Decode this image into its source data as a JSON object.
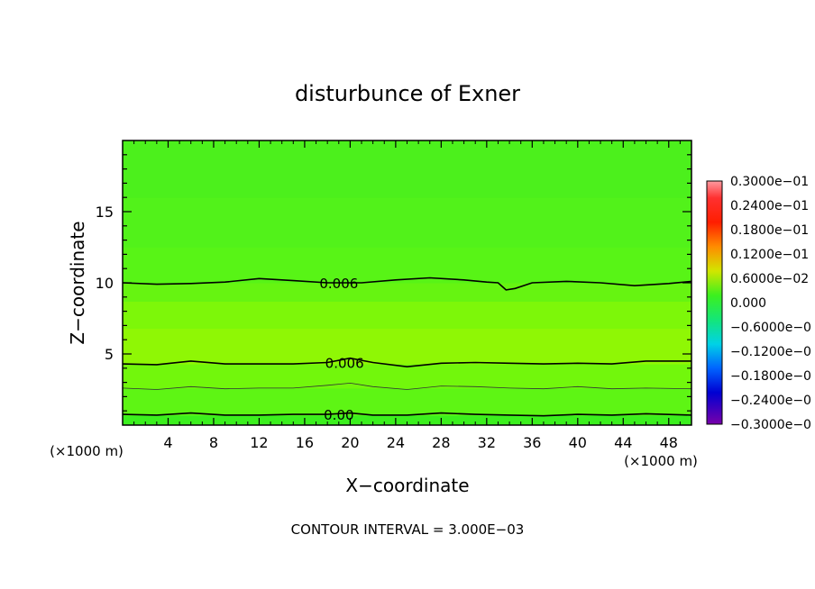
{
  "chart_data": {
    "type": "contour",
    "title": "disturbunce of Exner",
    "xlabel": "X−coordinate",
    "ylabel": "Z−coordinate",
    "x_unit_left": "(×1000 m)",
    "x_unit_right": "(×1000 m)",
    "footer": "CONTOUR INTERVAL = 3.000E−03",
    "xlim": [
      0,
      50
    ],
    "ylim": [
      0,
      20
    ],
    "x_ticks": [
      4,
      8,
      12,
      16,
      20,
      24,
      28,
      32,
      36,
      40,
      44,
      48
    ],
    "y_ticks": [
      5,
      10,
      15
    ],
    "colorbar": {
      "labels": [
        "0.3000e−01",
        "0.2400e−01",
        "0.1800e−01",
        "0.1200e−01",
        "0.6000e−02",
        "0.000",
        "−0.6000e−0",
        "−0.1200e−0",
        "−0.1800e−0",
        "−0.2400e−0",
        "−0.3000e−0"
      ],
      "max": 0.03,
      "min": -0.03
    },
    "bands": [
      {
        "z0": 0.0,
        "z1": 0.7,
        "color": "#3cf01e"
      },
      {
        "z0": 0.7,
        "z1": 2.6,
        "color": "#5ef514"
      },
      {
        "z0": 2.6,
        "z1": 4.3,
        "color": "#72f70c"
      },
      {
        "z0": 4.3,
        "z1": 6.8,
        "color": "#8ff705"
      },
      {
        "z0": 6.8,
        "z1": 8.7,
        "color": "#7df709"
      },
      {
        "z0": 8.7,
        "z1": 10.0,
        "color": "#66f411"
      },
      {
        "z0": 10.0,
        "z1": 12.5,
        "color": "#58f416"
      },
      {
        "z0": 12.5,
        "z1": 16.0,
        "color": "#52f21a"
      },
      {
        "z0": 16.0,
        "z1": 20.0,
        "color": "#4cf01c"
      }
    ],
    "contours": [
      {
        "label": "0.006",
        "label_x": 17.5,
        "style": "bold",
        "points": [
          [
            0,
            10.0
          ],
          [
            3,
            9.9
          ],
          [
            6,
            9.95
          ],
          [
            9,
            10.05
          ],
          [
            12,
            10.3
          ],
          [
            15,
            10.15
          ],
          [
            18,
            10.0
          ],
          [
            21,
            10.0
          ],
          [
            24,
            10.2
          ],
          [
            27,
            10.35
          ],
          [
            30,
            10.2
          ],
          [
            32,
            10.05
          ],
          [
            33,
            10.0
          ],
          [
            33.7,
            9.5
          ],
          [
            34.5,
            9.6
          ],
          [
            36,
            10.0
          ],
          [
            39,
            10.1
          ],
          [
            42,
            10.0
          ],
          [
            45,
            9.8
          ],
          [
            48,
            9.95
          ],
          [
            50,
            10.1
          ]
        ]
      },
      {
        "label": "0.006",
        "label_x": 18.0,
        "style": "bold",
        "points": [
          [
            0,
            4.3
          ],
          [
            3,
            4.25
          ],
          [
            6,
            4.5
          ],
          [
            9,
            4.3
          ],
          [
            12,
            4.3
          ],
          [
            15,
            4.3
          ],
          [
            18,
            4.4
          ],
          [
            20,
            4.7
          ],
          [
            22,
            4.4
          ],
          [
            25,
            4.1
          ],
          [
            28,
            4.35
          ],
          [
            31,
            4.4
          ],
          [
            34,
            4.35
          ],
          [
            37,
            4.3
          ],
          [
            40,
            4.35
          ],
          [
            43,
            4.3
          ],
          [
            46,
            4.5
          ],
          [
            50,
            4.5
          ]
        ]
      },
      {
        "label": "",
        "label_x": 0,
        "style": "thin",
        "points": [
          [
            0,
            2.6
          ],
          [
            3,
            2.5
          ],
          [
            6,
            2.7
          ],
          [
            9,
            2.55
          ],
          [
            12,
            2.6
          ],
          [
            15,
            2.6
          ],
          [
            18,
            2.8
          ],
          [
            20,
            2.95
          ],
          [
            22,
            2.7
          ],
          [
            25,
            2.5
          ],
          [
            28,
            2.75
          ],
          [
            31,
            2.7
          ],
          [
            34,
            2.6
          ],
          [
            37,
            2.55
          ],
          [
            40,
            2.7
          ],
          [
            43,
            2.55
          ],
          [
            46,
            2.6
          ],
          [
            50,
            2.55
          ]
        ]
      },
      {
        "label": "0.00",
        "label_x": 17.5,
        "style": "bold",
        "points": [
          [
            0,
            0.75
          ],
          [
            3,
            0.7
          ],
          [
            6,
            0.85
          ],
          [
            9,
            0.7
          ],
          [
            12,
            0.7
          ],
          [
            15,
            0.75
          ],
          [
            18,
            0.75
          ],
          [
            20,
            0.85
          ],
          [
            22,
            0.7
          ],
          [
            25,
            0.7
          ],
          [
            28,
            0.85
          ],
          [
            31,
            0.75
          ],
          [
            34,
            0.7
          ],
          [
            37,
            0.65
          ],
          [
            40,
            0.75
          ],
          [
            43,
            0.7
          ],
          [
            46,
            0.8
          ],
          [
            50,
            0.7
          ]
        ]
      }
    ]
  }
}
